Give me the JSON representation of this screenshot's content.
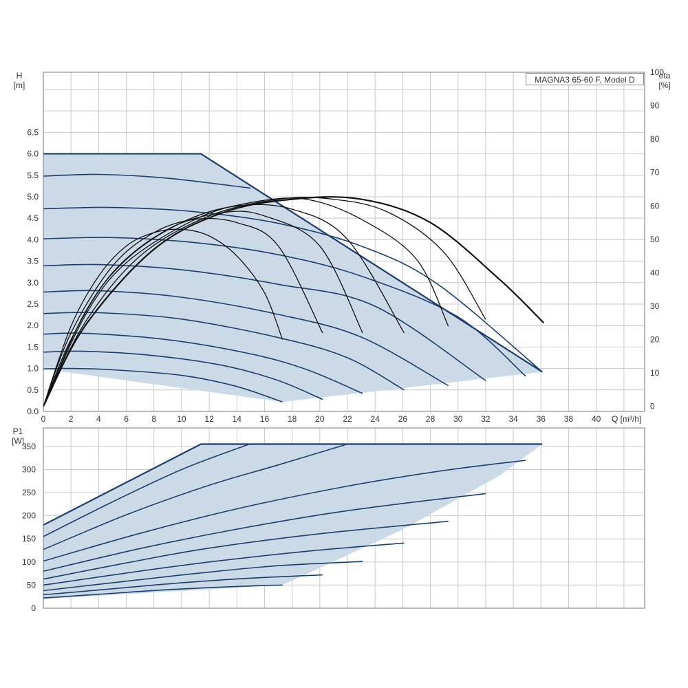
{
  "model_label": "MAGNA3 65-60 F, Model D",
  "colors": {
    "envelope_fill": "#ccdae8",
    "curve": "#1a3e6e",
    "eta_curve": "#111111",
    "grid": "#c8c8c8",
    "frame": "#777777"
  },
  "chart_data": [
    {
      "type": "line",
      "title": "MAGNA3 65-60 F, Model D",
      "xlabel": "Q [m³/h]",
      "ylabel": "H [m]",
      "y2label": "eta [%]",
      "x_ticks": [
        "0",
        "2",
        "4",
        "6",
        "8",
        "10",
        "12",
        "14",
        "16",
        "18",
        "20",
        "22",
        "24",
        "26",
        "28",
        "30",
        "32",
        "34",
        "36",
        "38",
        "40"
      ],
      "y_ticks": [
        "0.0",
        "0.5",
        "1.0",
        "1.5",
        "2.0",
        "2.5",
        "3.0",
        "3.5",
        "4.0",
        "4.5",
        "5.0",
        "5.5",
        "6.0",
        "6.5"
      ],
      "y2_ticks": [
        "0",
        "10",
        "20",
        "30",
        "40",
        "50",
        "60",
        "70",
        "80",
        "90",
        "100"
      ],
      "xlim": [
        0,
        43.5
      ],
      "ylim": [
        0,
        7.9
      ],
      "y2lim": [
        -1.5,
        100
      ],
      "grid": true,
      "envelope": [
        [
          0,
          6.0
        ],
        [
          11.4,
          6.0
        ],
        [
          36.1,
          0.92
        ],
        [
          17.3,
          0.22
        ],
        [
          0,
          0.99
        ]
      ],
      "head_curves": [
        {
          "name": "H1",
          "points": [
            [
              0,
              0.99
            ],
            [
              2,
              1.0
            ],
            [
              5,
              0.97
            ],
            [
              10,
              0.84
            ],
            [
              14,
              0.58
            ],
            [
              17.3,
              0.22
            ]
          ]
        },
        {
          "name": "H2",
          "points": [
            [
              0,
              1.38
            ],
            [
              3,
              1.4
            ],
            [
              8,
              1.3
            ],
            [
              13,
              1.07
            ],
            [
              17,
              0.72
            ],
            [
              20.2,
              0.28
            ]
          ]
        },
        {
          "name": "H3",
          "points": [
            [
              0,
              1.8
            ],
            [
              3,
              1.82
            ],
            [
              9,
              1.67
            ],
            [
              15,
              1.34
            ],
            [
              19,
              0.98
            ],
            [
              23.1,
              0.42
            ]
          ]
        },
        {
          "name": "H4",
          "points": [
            [
              0,
              2.28
            ],
            [
              4,
              2.3
            ],
            [
              10,
              2.15
            ],
            [
              17,
              1.72
            ],
            [
              22,
              1.25
            ],
            [
              26.1,
              0.5
            ]
          ]
        },
        {
          "name": "H5",
          "points": [
            [
              0,
              2.78
            ],
            [
              4,
              2.81
            ],
            [
              10,
              2.66
            ],
            [
              17,
              2.26
            ],
            [
              23,
              1.73
            ],
            [
              29.3,
              0.6
            ]
          ]
        },
        {
          "name": "H6",
          "points": [
            [
              0,
              3.39
            ],
            [
              4,
              3.42
            ],
            [
              10,
              3.3
            ],
            [
              17,
              2.96
            ],
            [
              24,
              2.45
            ],
            [
              32,
              0.72
            ]
          ]
        },
        {
          "name": "H7",
          "points": [
            [
              0,
              4.02
            ],
            [
              5,
              4.05
            ],
            [
              11,
              3.93
            ],
            [
              17,
              3.65
            ],
            [
              23,
              3.15
            ],
            [
              30,
              2.2
            ],
            [
              34.9,
              0.82
            ]
          ]
        },
        {
          "name": "H8",
          "points": [
            [
              0,
              4.72
            ],
            [
              5,
              4.75
            ],
            [
              11,
              4.65
            ],
            [
              17,
              4.38
            ],
            [
              23,
              3.85
            ],
            [
              28.5,
              2.97
            ],
            [
              36.1,
              0.92
            ]
          ]
        },
        {
          "name": "H9",
          "points": [
            [
              0,
              5.48
            ],
            [
              4,
              5.52
            ],
            [
              9,
              5.43
            ],
            [
              15,
              5.2
            ]
          ]
        }
      ],
      "eta_curves": [
        {
          "name": "eta1",
          "points": [
            [
              0,
              0
            ],
            [
              2,
              24
            ],
            [
              4,
              39
            ],
            [
              6,
              48
            ],
            [
              8,
              52
            ],
            [
              10,
              53
            ],
            [
              12,
              51
            ],
            [
              14,
              45
            ],
            [
              16,
              34
            ],
            [
              17.3,
              20
            ]
          ]
        },
        {
          "name": "eta2",
          "points": [
            [
              0,
              0
            ],
            [
              2,
              22
            ],
            [
              5,
              42
            ],
            [
              8,
              52
            ],
            [
              11,
              56
            ],
            [
              14,
              55
            ],
            [
              17,
              48
            ],
            [
              20.2,
              22
            ]
          ]
        },
        {
          "name": "eta3",
          "points": [
            [
              0,
              0
            ],
            [
              2,
              20
            ],
            [
              5,
              40
            ],
            [
              9,
              53
            ],
            [
              13,
              58
            ],
            [
              16,
              57
            ],
            [
              20,
              48
            ],
            [
              23.1,
              22
            ]
          ]
        },
        {
          "name": "eta4",
          "points": [
            [
              0,
              0
            ],
            [
              3,
              28
            ],
            [
              6,
              44
            ],
            [
              10,
              55
            ],
            [
              14,
              60
            ],
            [
              18,
              59
            ],
            [
              22,
              50
            ],
            [
              26.1,
              22
            ]
          ]
        },
        {
          "name": "eta5",
          "points": [
            [
              0,
              0
            ],
            [
              3,
              27
            ],
            [
              6,
              43
            ],
            [
              11,
              56
            ],
            [
              15,
              61
            ],
            [
              19,
              62
            ],
            [
              23,
              56
            ],
            [
              27,
              44
            ],
            [
              29.3,
              24
            ]
          ]
        },
        {
          "name": "eta6",
          "points": [
            [
              0,
              0
            ],
            [
              3,
              25
            ],
            [
              7,
              45
            ],
            [
              12,
              57
            ],
            [
              17,
              62
            ],
            [
              21,
              62
            ],
            [
              25,
              58
            ],
            [
              29,
              46
            ],
            [
              32,
              26
            ]
          ]
        },
        {
          "name": "eta7",
          "points": [
            [
              0,
              0
            ],
            [
              3,
              24
            ],
            [
              8,
              47
            ],
            [
              13,
              58
            ],
            [
              18,
              62
            ],
            [
              23,
              62
            ],
            [
              28,
              55
            ],
            [
              33,
              38
            ],
            [
              36.2,
              25
            ]
          ]
        }
      ],
      "power_xlim": [
        0,
        43.5
      ],
      "power_ylim": [
        0,
        390
      ],
      "power_label": "P1 [W]",
      "power_ticks": [
        "0",
        "50",
        "100",
        "150",
        "200",
        "250",
        "300",
        "350"
      ],
      "power_envelope": [
        [
          0,
          180
        ],
        [
          11.4,
          355
        ],
        [
          36.1,
          355
        ],
        [
          33,
          287
        ],
        [
          26,
          170
        ],
        [
          17.3,
          50
        ],
        [
          0,
          20
        ]
      ],
      "power_curves": [
        {
          "name": "P1",
          "points": [
            [
              0,
              22
            ],
            [
              4,
              30
            ],
            [
              9,
              40
            ],
            [
              14,
              47
            ],
            [
              17.3,
              50
            ]
          ]
        },
        {
          "name": "P2",
          "points": [
            [
              0,
              29
            ],
            [
              5,
              42
            ],
            [
              10,
              55
            ],
            [
              15,
              65
            ],
            [
              20.2,
              72
            ]
          ]
        },
        {
          "name": "P3",
          "points": [
            [
              0,
              38
            ],
            [
              5,
              55
            ],
            [
              11,
              75
            ],
            [
              17,
              92
            ],
            [
              23.1,
              101
            ]
          ]
        },
        {
          "name": "P4",
          "points": [
            [
              0,
              50
            ],
            [
              6,
              76
            ],
            [
              12,
              100
            ],
            [
              19,
              123
            ],
            [
              26.1,
              141
            ]
          ]
        },
        {
          "name": "P5",
          "points": [
            [
              0,
              63
            ],
            [
              6,
              98
            ],
            [
              12,
              130
            ],
            [
              20,
              161
            ],
            [
              29.3,
              188
            ]
          ]
        },
        {
          "name": "P6",
          "points": [
            [
              0,
              80
            ],
            [
              7,
              129
            ],
            [
              14,
              171
            ],
            [
              22,
              211
            ],
            [
              32,
              248
            ]
          ]
        },
        {
          "name": "P7",
          "points": [
            [
              0,
              102
            ],
            [
              7,
              162
            ],
            [
              14,
              215
            ],
            [
              22,
              264
            ],
            [
              29,
              298
            ],
            [
              34.9,
              320
            ]
          ]
        },
        {
          "name": "P8",
          "points": [
            [
              0,
              127
            ],
            [
              6,
              202
            ],
            [
              12,
              266
            ],
            [
              17,
              310
            ],
            [
              22,
              355
            ]
          ]
        },
        {
          "name": "P9",
          "points": [
            [
              0,
              155
            ],
            [
              5,
              230
            ],
            [
              10,
              300
            ],
            [
              14.9,
              355
            ]
          ]
        }
      ]
    }
  ]
}
